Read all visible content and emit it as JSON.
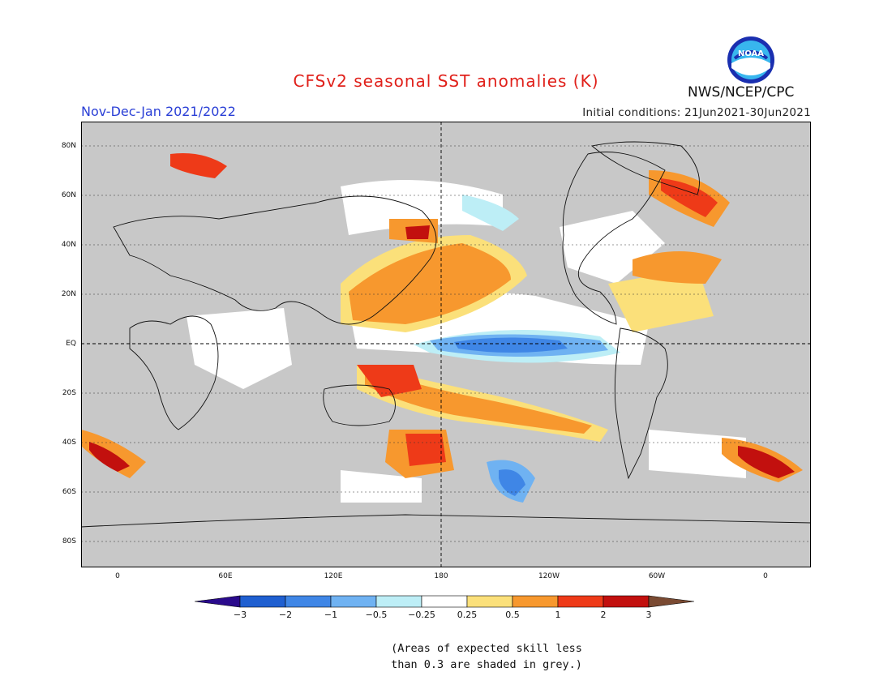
{
  "header": {
    "title": "CFSv2 seasonal SST anomalies (K)",
    "period": "Nov-Dec-Jan 2021/2022",
    "initial_conditions": "Initial conditions: 21Jun2021-30Jun2021",
    "org": "NWS/NCEP/CPC",
    "logo_text": "NOAA"
  },
  "map": {
    "lat_labels": [
      "80N",
      "60N",
      "40N",
      "20N",
      "EQ",
      "20S",
      "40S",
      "60S",
      "80S"
    ],
    "lon_labels": [
      "0",
      "60E",
      "120E",
      "180",
      "120W",
      "60W",
      "0"
    ]
  },
  "colorbar": {
    "ticks": [
      "−3",
      "−2",
      "−1",
      "−0.5",
      "−0.25",
      "0.25",
      "0.5",
      "1",
      "2",
      "3"
    ],
    "colors": [
      "#2a0a8c",
      "#1f5fd0",
      "#3f86e6",
      "#6fb2f2",
      "#bdeef6",
      "#ffffff",
      "#fbe07a",
      "#f7982e",
      "#ee3a18",
      "#c2100e",
      "#7a4a32"
    ]
  },
  "note": {
    "line1": "(Areas of expected skill less",
    "line2": "than 0.3 are shaded in grey.)"
  },
  "colors": {
    "grey_mask": "#c8c8c8",
    "title_red": "#e0201a",
    "period_blue": "#2a3fd6"
  }
}
